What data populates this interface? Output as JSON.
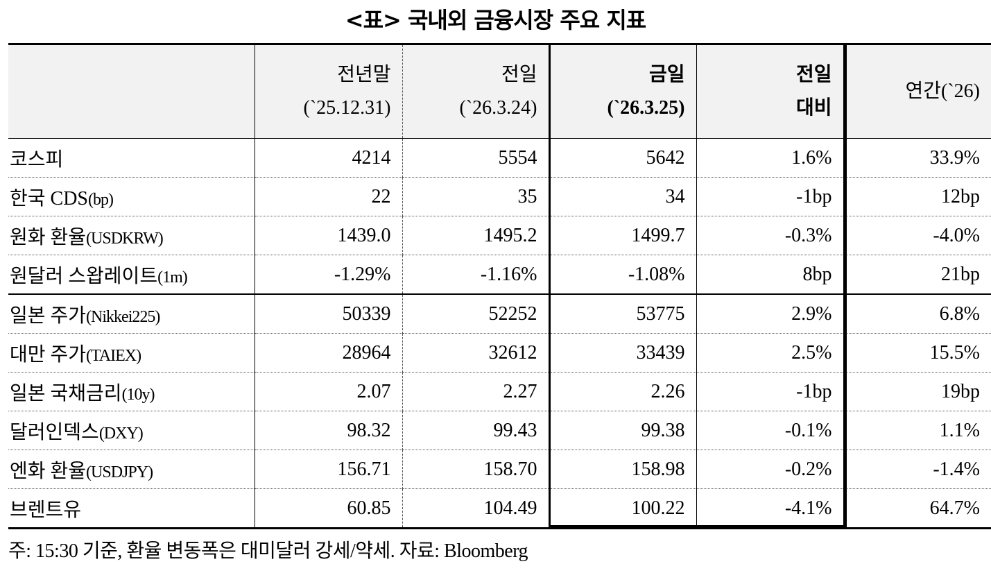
{
  "title": "<표> 국내외 금융시장 주요 지표",
  "columns": [
    {
      "line1": "전년말",
      "line2": "(`25.12.31)"
    },
    {
      "line1": "전일",
      "line2": "(`26.3.24)"
    },
    {
      "line1": "금일",
      "line2": "(`26.3.25)"
    },
    {
      "line1": "전일",
      "line2": "대비"
    },
    {
      "line1": "연간(`26)",
      "line2": ""
    }
  ],
  "rows": [
    {
      "ko": "코스피",
      "en": "",
      "values": [
        "4214",
        "5554",
        "5642",
        "1.6%",
        "33.9%"
      ]
    },
    {
      "ko": "한국 CDS",
      "en": "(bp)",
      "values": [
        "22",
        "35",
        "34",
        "-1bp",
        "12bp"
      ]
    },
    {
      "ko": "원화 환율",
      "en": "(USDKRW)",
      "values": [
        "1439.0",
        "1495.2",
        "1499.7",
        "-0.3%",
        "-4.0%"
      ]
    },
    {
      "ko": "원달러 스왑레이트",
      "en": "(1m)",
      "values": [
        "-1.29%",
        "-1.16%",
        "-1.08%",
        "8bp",
        "21bp"
      ]
    },
    {
      "ko": "일본 주가",
      "en": "(Nikkei225)",
      "values": [
        "50339",
        "52252",
        "53775",
        "2.9%",
        "6.8%"
      ]
    },
    {
      "ko": "대만 주가",
      "en": "(TAIEX)",
      "values": [
        "28964",
        "32612",
        "33439",
        "2.5%",
        "15.5%"
      ]
    },
    {
      "ko": "일본 국채금리",
      "en": "(10y)",
      "values": [
        "2.07",
        "2.27",
        "2.26",
        "-1bp",
        "19bp"
      ]
    },
    {
      "ko": "달러인덱스",
      "en": "(DXY)",
      "values": [
        "98.32",
        "99.43",
        "99.38",
        "-0.1%",
        "1.1%"
      ]
    },
    {
      "ko": "엔화 환율",
      "en": "(USDJPY)",
      "values": [
        "156.71",
        "158.70",
        "158.98",
        "-0.2%",
        "-1.4%"
      ]
    },
    {
      "ko": "브렌트유",
      "en": "",
      "values": [
        "60.85",
        "104.49",
        "100.22",
        "-4.1%",
        "64.7%"
      ]
    }
  ],
  "note": "주: 15:30 기준, 환율 변동폭은 대미달러 강세/약세. 자료: Bloomberg"
}
